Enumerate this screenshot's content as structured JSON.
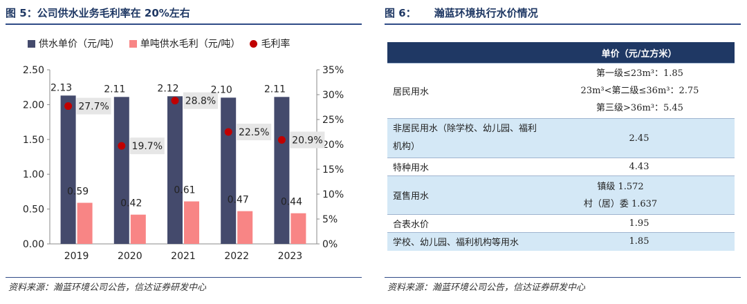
{
  "left": {
    "title": "图 5：公司供水业务毛利率在 20%左右",
    "source": "资料来源：瀚蓝环境公司公告，信达证券研发中心"
  },
  "right": {
    "title": "图 6：     瀚蓝环境执行水价情况",
    "source": "资料来源：瀚蓝环境公司公告，信达证券研发中心"
  },
  "colors": {
    "bar1": "#444a6c",
    "bar2": "#f88585",
    "dot": "#c00000",
    "header": "#1f3864",
    "highlight": "#d4e8f6"
  },
  "chart_data": {
    "type": "bar",
    "categories": [
      "2019",
      "2020",
      "2021",
      "2022",
      "2023"
    ],
    "series": [
      {
        "name": "供水单价（元/吨）",
        "values": [
          2.13,
          2.11,
          2.12,
          2.1,
          2.11
        ],
        "labels": [
          "2.13",
          "2.11",
          "2.12",
          "2.10",
          "2.11"
        ],
        "axis": "left"
      },
      {
        "name": "单吨供水毛利（元/吨）",
        "values": [
          0.59,
          0.42,
          0.61,
          0.47,
          0.44
        ],
        "labels": [
          "0.59",
          "0.42",
          "0.61",
          "0.47",
          "0.44"
        ],
        "axis": "left"
      },
      {
        "name": "毛利率",
        "type": "scatter",
        "values": [
          27.7,
          19.7,
          28.8,
          22.5,
          20.9
        ],
        "labels": [
          "27.7%",
          "19.7%",
          "28.8%",
          "22.5%",
          "20.9%"
        ],
        "axis": "right"
      }
    ],
    "y_left": {
      "range": [
        0,
        2.5
      ],
      "ticks": [
        "0.00",
        "0.50",
        "1.00",
        "1.50",
        "2.00",
        "2.50"
      ]
    },
    "y_right": {
      "range": [
        0,
        35
      ],
      "ticks": [
        "0%",
        "5%",
        "10%",
        "15%",
        "20%",
        "25%",
        "30%",
        "35%"
      ]
    },
    "legend_position": "top"
  },
  "table": {
    "headers": [
      "",
      "单价（元/立方米）"
    ],
    "rows": [
      {
        "category": "居民用水",
        "price_lines": [
          "第一级≤23m³：1.85",
          "23m³<第二级≤36m³：2.75",
          "第三级>36m³：5.45"
        ],
        "highlight": false
      },
      {
        "category": "非居民用水（除学校、幼儿园、福利机构）",
        "price_lines": [
          "2.45"
        ],
        "highlight": true
      },
      {
        "category": "特种用水",
        "price_lines": [
          "4.43"
        ],
        "highlight": false
      },
      {
        "category": "趸售用水",
        "price_lines": [
          "镇级 1.572",
          "村（居）委 1.637"
        ],
        "highlight": true
      },
      {
        "category": "合表水价",
        "price_lines": [
          "1.95"
        ],
        "highlight": false
      },
      {
        "category": "学校、幼儿园、福利机构等用水",
        "price_lines": [
          "1.85"
        ],
        "highlight": true
      }
    ]
  }
}
